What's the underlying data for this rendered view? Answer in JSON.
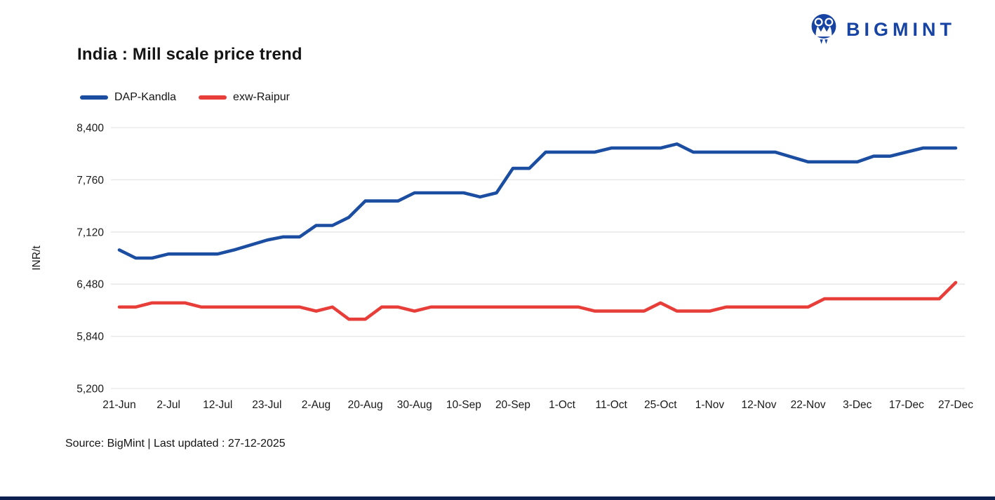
{
  "page": {
    "title": "India : Mill scale price trend",
    "source_note": "Source: BigMint | Last updated : 27-12-2025"
  },
  "logo": {
    "brand": "BIGMINT",
    "color": "#1743A3"
  },
  "colors": {
    "blue_series": "#1B4DA1",
    "red_series": "#E83E3A",
    "gridline": "#E6E6E6",
    "axis_text": "#1A1A1A",
    "footer_bar": "#0E2050"
  },
  "chart_data": {
    "type": "line",
    "title": "India : Mill scale price trend",
    "xlabel": "",
    "ylabel": "INR/t",
    "ylim": [
      5200,
      8400
    ],
    "grid": "horizontal-only",
    "legend_position": "top-left",
    "n_points": 52,
    "points_per_label": 3,
    "yticks": {
      "values": [
        8400,
        7760,
        7120,
        6480,
        5840,
        5200
      ],
      "labels": [
        "8,400",
        "7,760",
        "7,120",
        "6,480",
        "5,840",
        "5,200"
      ]
    },
    "x_tick_labels": [
      "21-Jun",
      "2-Jul",
      "12-Jul",
      "23-Jul",
      "2-Aug",
      "20-Aug",
      "30-Aug",
      "10-Sep",
      "20-Sep",
      "1-Oct",
      "11-Oct",
      "25-Oct",
      "1-Nov",
      "12-Nov",
      "22-Nov",
      "3-Dec",
      "17-Dec",
      "27-Dec"
    ],
    "series": [
      {
        "name": "DAP-Kandla",
        "color": "#1B4DA1",
        "values": [
          6900,
          6800,
          6800,
          6850,
          6850,
          6850,
          6850,
          6900,
          6960,
          7020,
          7060,
          7060,
          7200,
          7200,
          7300,
          7500,
          7500,
          7500,
          7600,
          7600,
          7600,
          7600,
          7550,
          7600,
          7900,
          7900,
          8100,
          8100,
          8100,
          8100,
          8150,
          8150,
          8150,
          8150,
          8200,
          8100,
          8100,
          8100,
          8100,
          8100,
          8100,
          8040,
          7980,
          7980,
          7980,
          7980,
          8050,
          8050,
          8100,
          8150,
          8150,
          8150
        ]
      },
      {
        "name": "exw-Raipur",
        "color": "#E83E3A",
        "values": [
          6200,
          6200,
          6250,
          6250,
          6250,
          6200,
          6200,
          6200,
          6200,
          6200,
          6200,
          6200,
          6150,
          6200,
          6050,
          6050,
          6200,
          6200,
          6150,
          6200,
          6200,
          6200,
          6200,
          6200,
          6200,
          6200,
          6200,
          6200,
          6200,
          6150,
          6150,
          6150,
          6150,
          6250,
          6150,
          6150,
          6150,
          6200,
          6200,
          6200,
          6200,
          6200,
          6200,
          6300,
          6300,
          6300,
          6300,
          6300,
          6300,
          6300,
          6300,
          6500
        ]
      }
    ],
    "values_at_labeled_dates": {
      "DAP-Kandla": [
        6900,
        6850,
        6850,
        7020,
        7200,
        7500,
        7600,
        7600,
        7900,
        8100,
        8150,
        8150,
        8100,
        8100,
        7980,
        7980,
        8100,
        8150
      ],
      "exw-Raipur": [
        6200,
        6250,
        6200,
        6200,
        6150,
        6050,
        6150,
        6200,
        6200,
        6200,
        6150,
        6250,
        6150,
        6200,
        6200,
        6300,
        6300,
        6500
      ]
    }
  }
}
